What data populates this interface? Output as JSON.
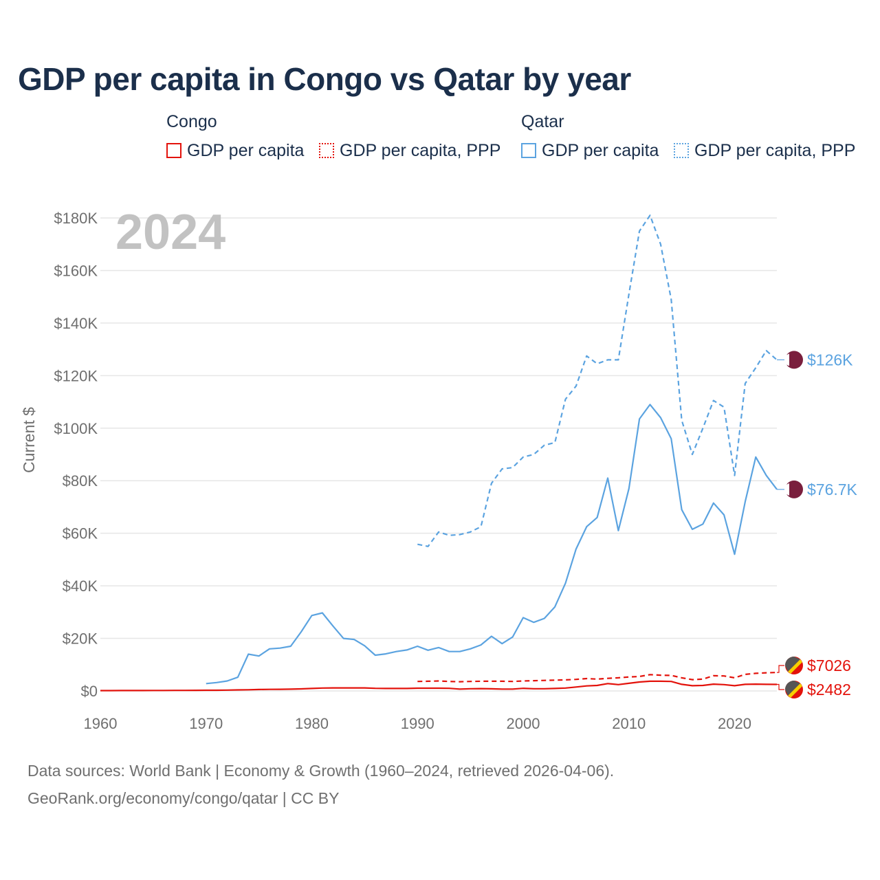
{
  "title": "GDP per capita in Congo vs Qatar by year",
  "legend": {
    "groups": [
      {
        "name": "Congo",
        "items": [
          {
            "label": "GDP per capita",
            "style": "solid",
            "color": "#e3120b"
          },
          {
            "label": "GDP per capita, PPP",
            "style": "dotted",
            "color": "#e3120b"
          }
        ]
      },
      {
        "name": "Qatar",
        "items": [
          {
            "label": "GDP per capita",
            "style": "solid",
            "color": "#5ba3e0"
          },
          {
            "label": "GDP per capita, PPP",
            "style": "dotted",
            "color": "#5ba3e0"
          }
        ]
      }
    ]
  },
  "year_watermark": "2024",
  "footer": {
    "line1": "Data sources: World Bank | Economy & Growth (1960–2024, retrieved 2026-04-06).",
    "line2": "GeoRank.org/economy/congo/qatar | CC BY"
  },
  "colors": {
    "congo": "#e3120b",
    "qatar": "#5ba3e0",
    "grid": "#e6e6e6",
    "qatar_flag": "#7a1f3d"
  },
  "chart_data": {
    "type": "line",
    "title": "GDP per capita in Congo vs Qatar by year",
    "xlabel": "",
    "ylabel": "Current $",
    "xlim": [
      1960,
      2024
    ],
    "ylim": [
      0,
      180000
    ],
    "x_ticks": [
      1960,
      1970,
      1980,
      1990,
      2000,
      2010,
      2020
    ],
    "x_tick_labels": [
      "1960",
      "1970",
      "1980",
      "1990",
      "2000",
      "2010",
      "2020"
    ],
    "y_ticks": [
      0,
      20000,
      40000,
      60000,
      80000,
      100000,
      120000,
      140000,
      160000,
      180000
    ],
    "y_tick_labels": [
      "$0",
      "$20K",
      "$40K",
      "$60K",
      "$80K",
      "$100K",
      "$120K",
      "$140K",
      "$160K",
      "$180K"
    ],
    "series": [
      {
        "name": "Qatar GDP per capita, PPP",
        "country": "qatar",
        "dash": "dashed",
        "end_label": "$126K",
        "x": [
          1990,
          1991,
          1992,
          1993,
          1994,
          1995,
          1996,
          1997,
          1998,
          1999,
          2000,
          2001,
          2002,
          2003,
          2004,
          2005,
          2006,
          2007,
          2008,
          2009,
          2010,
          2011,
          2012,
          2013,
          2014,
          2015,
          2016,
          2017,
          2018,
          2019,
          2020,
          2021,
          2022,
          2023,
          2024
        ],
        "values": [
          55800,
          55000,
          60500,
          59200,
          59500,
          60500,
          62500,
          79000,
          84500,
          85000,
          89000,
          90000,
          93500,
          94500,
          111000,
          116000,
          127500,
          124500,
          126000,
          126000,
          151000,
          175000,
          181000,
          170000,
          149000,
          103000,
          90000,
          100000,
          110500,
          108000,
          82000,
          117000,
          123000,
          129500,
          126000
        ]
      },
      {
        "name": "Qatar GDP per capita",
        "country": "qatar",
        "dash": "solid",
        "end_label": "$76.7K",
        "x": [
          1970,
          1971,
          1972,
          1973,
          1974,
          1975,
          1976,
          1977,
          1978,
          1979,
          1980,
          1981,
          1982,
          1983,
          1984,
          1985,
          1986,
          1987,
          1988,
          1989,
          1990,
          1991,
          1992,
          1993,
          1994,
          1995,
          1996,
          1997,
          1998,
          1999,
          2000,
          2001,
          2002,
          2003,
          2004,
          2005,
          2006,
          2007,
          2008,
          2009,
          2010,
          2011,
          2012,
          2013,
          2014,
          2015,
          2016,
          2017,
          2018,
          2019,
          2020,
          2021,
          2022,
          2023,
          2024
        ],
        "values": [
          2800,
          3200,
          3800,
          5200,
          14000,
          13300,
          16000,
          16300,
          17000,
          22500,
          28700,
          29700,
          24700,
          20000,
          19600,
          17200,
          13600,
          14100,
          15000,
          15600,
          17000,
          15500,
          16500,
          15000,
          15000,
          16000,
          17500,
          20800,
          18000,
          20500,
          27900,
          26100,
          27600,
          32000,
          41000,
          54000,
          62500,
          66000,
          81000,
          61000,
          77000,
          103500,
          109000,
          104000,
          96000,
          69000,
          61500,
          63500,
          71500,
          67000,
          52000,
          72000,
          89000,
          82000,
          76700
        ]
      },
      {
        "name": "Congo GDP per capita, PPP",
        "country": "congo",
        "dash": "dashed",
        "end_label": "$7026",
        "x": [
          1990,
          1991,
          1992,
          1993,
          1994,
          1995,
          1996,
          1997,
          1998,
          1999,
          2000,
          2001,
          2002,
          2003,
          2004,
          2005,
          2006,
          2007,
          2008,
          2009,
          2010,
          2011,
          2012,
          2013,
          2014,
          2015,
          2016,
          2017,
          2018,
          2019,
          2020,
          2021,
          2022,
          2023,
          2024
        ],
        "values": [
          3600,
          3700,
          3800,
          3600,
          3500,
          3600,
          3700,
          3700,
          3700,
          3600,
          3800,
          3900,
          4000,
          4100,
          4200,
          4400,
          4700,
          4500,
          4800,
          5000,
          5300,
          5500,
          6200,
          6000,
          5900,
          5000,
          4300,
          4500,
          5800,
          5700,
          5000,
          6300,
          6700,
          6900,
          7026
        ]
      },
      {
        "name": "Congo GDP per capita",
        "country": "congo",
        "dash": "solid",
        "end_label": "$2482",
        "x": [
          1960,
          1961,
          1962,
          1963,
          1964,
          1965,
          1966,
          1967,
          1968,
          1969,
          1970,
          1971,
          1972,
          1973,
          1974,
          1975,
          1976,
          1977,
          1978,
          1979,
          1980,
          1981,
          1982,
          1983,
          1984,
          1985,
          1986,
          1987,
          1988,
          1989,
          1990,
          1991,
          1992,
          1993,
          1994,
          1995,
          1996,
          1997,
          1998,
          1999,
          2000,
          2001,
          2002,
          2003,
          2004,
          2005,
          2006,
          2007,
          2008,
          2009,
          2010,
          2011,
          2012,
          2013,
          2014,
          2015,
          2016,
          2017,
          2018,
          2019,
          2020,
          2021,
          2022,
          2023,
          2024
        ],
        "values": [
          130,
          140,
          150,
          160,
          170,
          180,
          190,
          200,
          210,
          230,
          250,
          270,
          310,
          380,
          450,
          550,
          600,
          620,
          680,
          780,
          950,
          1100,
          1150,
          1150,
          1150,
          1150,
          1000,
          950,
          950,
          950,
          1050,
          1050,
          1050,
          1000,
          700,
          850,
          900,
          800,
          700,
          700,
          1000,
          850,
          850,
          950,
          1100,
          1500,
          1900,
          2100,
          2800,
          2400,
          2900,
          3400,
          3700,
          3700,
          3600,
          2500,
          2000,
          2100,
          2600,
          2400,
          2000,
          2500,
          2600,
          2500,
          2482
        ]
      }
    ]
  }
}
